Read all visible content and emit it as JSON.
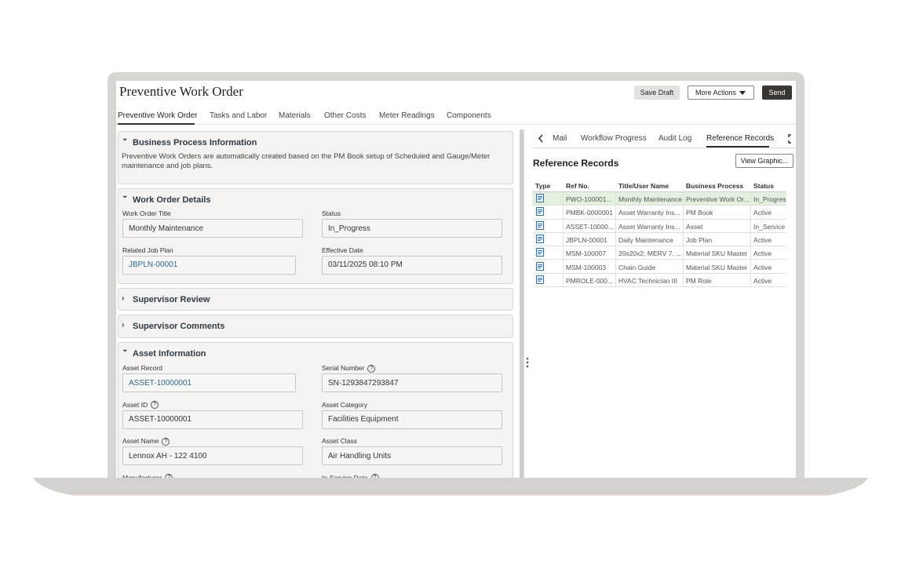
{
  "header": {
    "title": "Preventive Work Order",
    "buttons": [
      "Save Draft",
      "More Actions",
      "Send"
    ]
  },
  "tabs": [
    "Preventive Work Order",
    "Tasks and Labor",
    "Materials",
    "Other Costs",
    "Meter Readings",
    "Components"
  ],
  "sections": [
    {
      "title": "Business Process Information",
      "text": "Preventive Work Orders are automatically created based on the PM Book setup of Scheduled and Gauge/Meter maintenance and job plans."
    },
    {
      "title": "Work Order Details",
      "fields": [
        {
          "label": "Work Order Title",
          "value": "Monthly Maintenance"
        },
        {
          "label": "Status",
          "value": "In_Progress"
        },
        {
          "label": "Related Job Plan",
          "value": "JBPLN-00001",
          "link": true
        },
        {
          "label": "Effective Date",
          "value": "03/11/2025 08:10 PM"
        }
      ]
    },
    {
      "title": "Supervisor Review",
      "collapsed": true
    },
    {
      "title": "Supervisor Comments",
      "collapsed": true
    },
    {
      "title": "Asset Information",
      "fields": [
        {
          "label": "Asset Record",
          "value": "ASSET-10000001",
          "link": true
        },
        {
          "label": "Serial Number",
          "value": "SN-1293847293847",
          "help": true
        },
        {
          "label": "Asset ID",
          "value": "ASSET-10000001",
          "help": true
        },
        {
          "label": "Asset Category",
          "value": "Facilities Equipment"
        },
        {
          "label": "Asset Name",
          "value": "Lennox AH - 122 4100",
          "help": true
        },
        {
          "label": "Asset Class",
          "value": "Air Handling Units"
        },
        {
          "label": "Manufacturer",
          "help": true
        },
        {
          "label": "In-Service Date",
          "help": true
        }
      ]
    }
  ],
  "right_panel": {
    "tabs": [
      "Mail",
      "Workflow Progress",
      "Audit Log",
      "Reference Records"
    ],
    "heading": "Reference Records",
    "button": "View Graphic...",
    "table": {
      "columns": [
        "Type",
        "Ref No.",
        "Title/User Name",
        "Business Process",
        "Status"
      ],
      "rows": [
        [
          "PWO-100001...",
          "Monthly Maintenance",
          "Preventive Work Or...",
          "In_Progress"
        ],
        [
          "PMBK-0000001",
          "Asset Warranty Ins...",
          "PM Book",
          "Active"
        ],
        [
          "ASSET-10000...",
          "Asset Warranty Ins...",
          "Asset",
          "In_Service"
        ],
        [
          "JBPLN-00001",
          "Daily Maintenance",
          "Job Plan",
          "Active"
        ],
        [
          "MSM-100007",
          "20x20x2, MERV 7, ...",
          "Material SKU Master",
          "Active"
        ],
        [
          "MSM-100003",
          "Chain Guide",
          "Material SKU Master",
          "Active"
        ],
        [
          "PMROLE-000...",
          "HVAC Technician III",
          "PM Role",
          "Active"
        ]
      ]
    }
  }
}
